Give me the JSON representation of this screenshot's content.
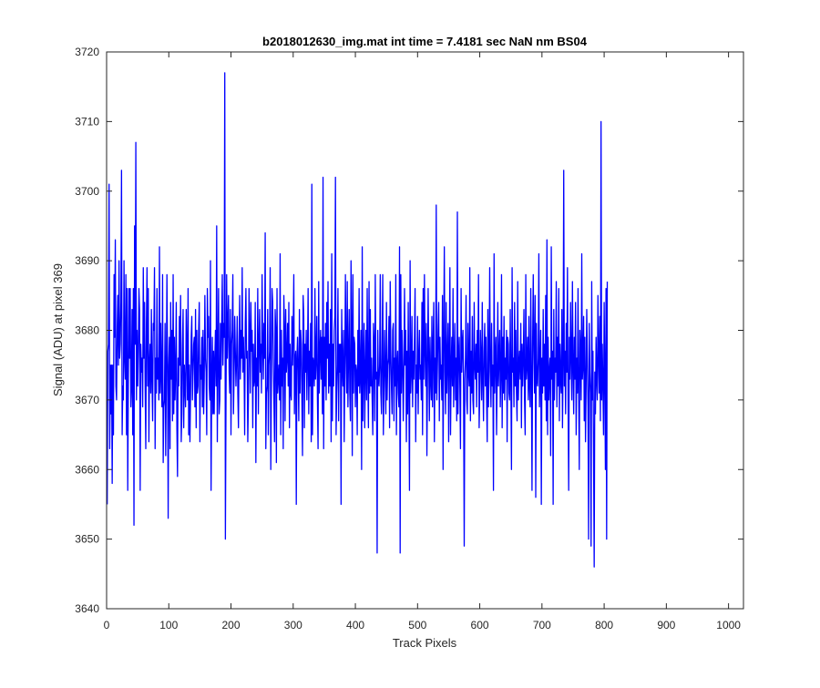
{
  "chart_data": {
    "type": "line",
    "title": "b2018012630_img.mat int time = 7.4181 sec  NaN nm BS04",
    "xlabel": "Track Pixels",
    "ylabel": "Signal (ADU) at pixel 369",
    "xlim": [
      0,
      1024
    ],
    "ylim": [
      3640,
      3720
    ],
    "xticks": [
      0,
      100,
      200,
      300,
      400,
      500,
      600,
      700,
      800,
      900,
      1000
    ],
    "yticks": [
      3640,
      3650,
      3660,
      3670,
      3680,
      3690,
      3700,
      3710,
      3720
    ],
    "grid": false,
    "box": true,
    "line_color": "#0000ff",
    "series": [
      {
        "x_start": 1,
        "x_step": 1,
        "values": [
          3655,
          3677,
          3678,
          3701,
          3663,
          3675,
          3668,
          3675,
          3658,
          3675,
          3665,
          3688,
          3679,
          3693,
          3672,
          3670,
          3680,
          3685,
          3675,
          3690,
          3676,
          3678,
          3684,
          3703,
          3665,
          3672,
          3670,
          3690,
          3676,
          3673,
          3688,
          3665,
          3686,
          3657,
          3673,
          3686,
          3676,
          3686,
          3669,
          3672,
          3683,
          3665,
          3686,
          3652,
          3695,
          3678,
          3707,
          3670,
          3680,
          3672,
          3677,
          3686,
          3683,
          3657,
          3678,
          3674,
          3676,
          3669,
          3689,
          3676,
          3684,
          3672,
          3663,
          3681,
          3689,
          3672,
          3686,
          3664,
          3675,
          3678,
          3671,
          3683,
          3673,
          3667,
          3681,
          3680,
          3689,
          3663,
          3676,
          3671,
          3686,
          3673,
          3676,
          3670,
          3692,
          3671,
          3681,
          3673,
          3669,
          3688,
          3661,
          3669,
          3670,
          3681,
          3662,
          3673,
          3688,
          3675,
          3653,
          3675,
          3679,
          3663,
          3684,
          3673,
          3680,
          3667,
          3688,
          3668,
          3679,
          3670,
          3674,
          3684,
          3666,
          3659,
          3676,
          3672,
          3682,
          3675,
          3685,
          3664,
          3668,
          3678,
          3683,
          3666,
          3675,
          3672,
          3669,
          3683,
          3677,
          3670,
          3686,
          3665,
          3675,
          3664,
          3671,
          3679,
          3682,
          3670,
          3674,
          3678,
          3679,
          3669,
          3683,
          3666,
          3680,
          3671,
          3672,
          3680,
          3684,
          3664,
          3675,
          3673,
          3679,
          3669,
          3680,
          3668,
          3673,
          3685,
          3676,
          3674,
          3665,
          3686,
          3679,
          3682,
          3672,
          3670,
          3690,
          3657,
          3673,
          3679,
          3668,
          3677,
          3668,
          3676,
          3680,
          3672,
          3695,
          3664,
          3676,
          3686,
          3668,
          3670,
          3681,
          3673,
          3681,
          3688,
          3675,
          3681,
          3679,
          3717,
          3650,
          3670,
          3688,
          3676,
          3681,
          3685,
          3674,
          3671,
          3683,
          3665,
          3678,
          3680,
          3688,
          3668,
          3674,
          3682,
          3677,
          3672,
          3676,
          3682,
          3671,
          3666,
          3678,
          3685,
          3673,
          3680,
          3676,
          3689,
          3674,
          3679,
          3675,
          3665,
          3681,
          3686,
          3676,
          3677,
          3664,
          3670,
          3686,
          3679,
          3671,
          3684,
          3677,
          3680,
          3666,
          3678,
          3672,
          3673,
          3684,
          3661,
          3676,
          3672,
          3686,
          3668,
          3678,
          3683,
          3674,
          3678,
          3671,
          3688,
          3678,
          3673,
          3681,
          3676,
          3694,
          3663,
          3671,
          3672,
          3683,
          3665,
          3675,
          3677,
          3689,
          3660,
          3673,
          3686,
          3684,
          3676,
          3670,
          3664,
          3683,
          3680,
          3661,
          3686,
          3671,
          3673,
          3675,
          3670,
          3691,
          3665,
          3680,
          3672,
          3676,
          3663,
          3685,
          3680,
          3667,
          3683,
          3674,
          3676,
          3681,
          3672,
          3684,
          3666,
          3678,
          3671,
          3670,
          3682,
          3675,
          3680,
          3688,
          3668,
          3676,
          3677,
          3655,
          3676,
          3679,
          3674,
          3667,
          3683,
          3671,
          3680,
          3678,
          3670,
          3662,
          3685,
          3682,
          3666,
          3678,
          3674,
          3680,
          3670,
          3676,
          3686,
          3668,
          3677,
          3672,
          3681,
          3664,
          3701,
          3665,
          3676,
          3675,
          3672,
          3686,
          3673,
          3676,
          3682,
          3670,
          3663,
          3687,
          3671,
          3677,
          3680,
          3673,
          3679,
          3668,
          3702,
          3663,
          3679,
          3672,
          3681,
          3670,
          3684,
          3676,
          3687,
          3671,
          3678,
          3672,
          3683,
          3664,
          3691,
          3667,
          3678,
          3672,
          3680,
          3682,
          3702,
          3665,
          3671,
          3675,
          3686,
          3667,
          3678,
          3674,
          3678,
          3655,
          3683,
          3675,
          3672,
          3680,
          3664,
          3674,
          3688,
          3677,
          3671,
          3687,
          3669,
          3676,
          3683,
          3671,
          3667,
          3690,
          3679,
          3662,
          3688,
          3671,
          3679,
          3678,
          3669,
          3675,
          3674,
          3665,
          3680,
          3672,
          3686,
          3671,
          3674,
          3680,
          3660,
          3692,
          3667,
          3675,
          3681,
          3666,
          3674,
          3680,
          3670,
          3686,
          3674,
          3666,
          3687,
          3671,
          3683,
          3672,
          3676,
          3670,
          3665,
          3681,
          3678,
          3667,
          3688,
          3673,
          3674,
          3648,
          3680,
          3673,
          3672,
          3675,
          3688,
          3671,
          3668,
          3677,
          3688,
          3665,
          3672,
          3680,
          3674,
          3668,
          3684,
          3670,
          3675,
          3676,
          3682,
          3666,
          3687,
          3677,
          3672,
          3668,
          3680,
          3681,
          3667,
          3676,
          3672,
          3688,
          3665,
          3675,
          3677,
          3671,
          3669,
          3692,
          3648,
          3688,
          3671,
          3680,
          3675,
          3667,
          3674,
          3686,
          3675,
          3680,
          3664,
          3677,
          3668,
          3684,
          3672,
          3657,
          3690,
          3671,
          3674,
          3682,
          3669,
          3677,
          3673,
          3679,
          3686,
          3664,
          3675,
          3671,
          3682,
          3668,
          3676,
          3680,
          3673,
          3675,
          3670,
          3684,
          3665,
          3686,
          3673,
          3688,
          3677,
          3672,
          3681,
          3662,
          3674,
          3686,
          3676,
          3667,
          3679,
          3673,
          3670,
          3682,
          3669,
          3678,
          3684,
          3664,
          3676,
          3671,
          3698,
          3670,
          3675,
          3680,
          3684,
          3667,
          3679,
          3673,
          3675,
          3670,
          3685,
          3660,
          3679,
          3692,
          3674,
          3668,
          3684,
          3671,
          3676,
          3681,
          3664,
          3677,
          3689,
          3665,
          3674,
          3679,
          3672,
          3686,
          3669,
          3675,
          3681,
          3670,
          3676,
          3667,
          3697,
          3668,
          3676,
          3679,
          3672,
          3663,
          3686,
          3674,
          3678,
          3680,
          3671,
          3649,
          3673,
          3676,
          3685,
          3670,
          3668,
          3681,
          3674,
          3672,
          3689,
          3667,
          3677,
          3671,
          3682,
          3670,
          3668,
          3684,
          3675,
          3673,
          3678,
          3669,
          3680,
          3674,
          3688,
          3666,
          3671,
          3680,
          3676,
          3670,
          3684,
          3673,
          3667,
          3677,
          3681,
          3672,
          3679,
          3670,
          3664,
          3683,
          3669,
          3676,
          3689,
          3674,
          3669,
          3681,
          3672,
          3675,
          3657,
          3691,
          3671,
          3676,
          3679,
          3665,
          3673,
          3684,
          3672,
          3676,
          3680,
          3669,
          3674,
          3688,
          3666,
          3679,
          3671,
          3682,
          3670,
          3676,
          3673,
          3680,
          3664,
          3679,
          3678,
          3671,
          3670,
          3683,
          3673,
          3660,
          3689,
          3674,
          3676,
          3669,
          3684,
          3672,
          3680,
          3671,
          3667,
          3687,
          3670,
          3675,
          3677,
          3673,
          3681,
          3666,
          3678,
          3672,
          3676,
          3683,
          3670,
          3665,
          3688,
          3673,
          3675,
          3679,
          3670,
          3682,
          3672,
          3669,
          3686,
          3674,
          3657,
          3678,
          3688,
          3677,
          3671,
          3685,
          3656,
          3681,
          3673,
          3672,
          3676,
          3691,
          3669,
          3674,
          3680,
          3655,
          3676,
          3671,
          3683,
          3672,
          3678,
          3670,
          3685,
          3667,
          3693,
          3665,
          3679,
          3670,
          3674,
          3676,
          3662,
          3692,
          3673,
          3677,
          3655,
          3683,
          3670,
          3676,
          3674,
          3687,
          3669,
          3679,
          3672,
          3686,
          3667,
          3678,
          3673,
          3671,
          3683,
          3666,
          3675,
          3703,
          3672,
          3677,
          3668,
          3681,
          3674,
          3689,
          3670,
          3657,
          3679,
          3673,
          3684,
          3676,
          3670,
          3687,
          3675,
          3668,
          3679,
          3673,
          3684,
          3665,
          3676,
          3671,
          3686,
          3672,
          3660,
          3680,
          3677,
          3670,
          3691,
          3673,
          3675,
          3682,
          3667,
          3679,
          3664,
          3672,
          3683,
          3676,
          3669,
          3650,
          3681,
          3674,
          3671,
          3649,
          3687,
          3670,
          3677,
          3662,
          3646,
          3674,
          3668,
          3679,
          3673,
          3670,
          3685,
          3676,
          3671,
          3682,
          3667,
          3710,
          3670,
          3678,
          3672,
          3665,
          3684,
          3674,
          3660,
          3686,
          3650,
          3687
        ]
      }
    ]
  }
}
